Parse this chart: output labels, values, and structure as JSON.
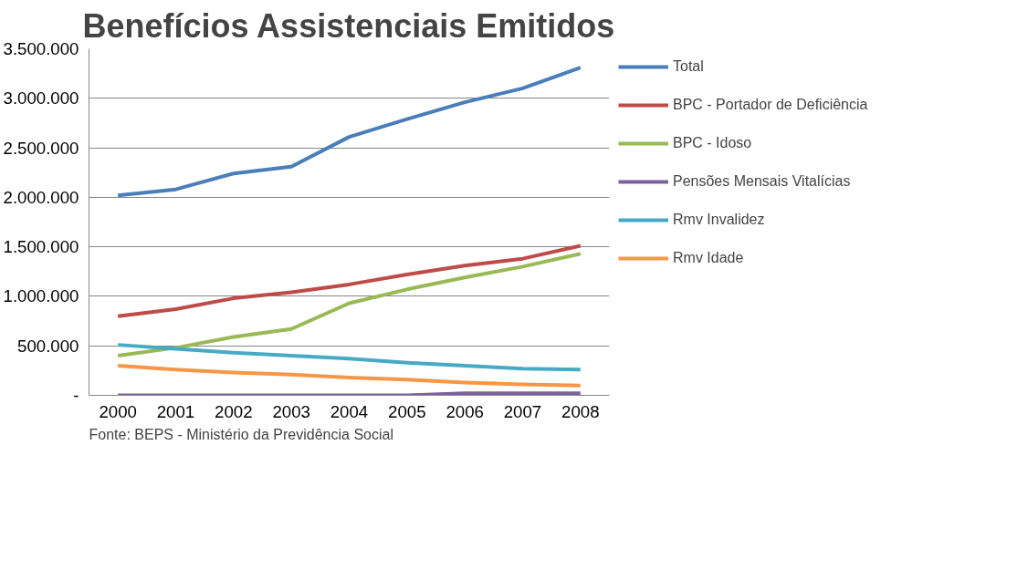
{
  "chart_data": {
    "type": "line",
    "title": "Benefícios Assistenciais Emitidos",
    "categories": [
      "2000",
      "2001",
      "2002",
      "2003",
      "2004",
      "2005",
      "2006",
      "2007",
      "2008"
    ],
    "series": [
      {
        "name": "Total",
        "color": "#4a7ebb",
        "values": [
          2020000,
          2080000,
          2240000,
          2310000,
          2610000,
          2790000,
          2960000,
          3100000,
          3310000
        ]
      },
      {
        "name": "BPC - Portador de Deficiência",
        "color": "#be4b48",
        "values": [
          800000,
          870000,
          980000,
          1040000,
          1120000,
          1220000,
          1310000,
          1380000,
          1510000
        ]
      },
      {
        "name": "BPC - Idoso",
        "color": "#98b954",
        "values": [
          400000,
          480000,
          590000,
          670000,
          930000,
          1070000,
          1190000,
          1300000,
          1430000
        ]
      },
      {
        "name": "Pensões Mensais Vitalícias",
        "color": "#7d60a0",
        "values": [
          0,
          0,
          0,
          0,
          0,
          0,
          20000,
          20000,
          20000
        ]
      },
      {
        "name": "Rmv Invalidez",
        "color": "#46aac5",
        "values": [
          510000,
          470000,
          430000,
          400000,
          370000,
          330000,
          300000,
          270000,
          260000
        ]
      },
      {
        "name": "Rmv Idade",
        "color": "#f79646",
        "values": [
          300000,
          260000,
          230000,
          210000,
          180000,
          160000,
          130000,
          110000,
          100000
        ]
      }
    ],
    "ylim": [
      0,
      3500000
    ],
    "yticks": [
      {
        "value": 0,
        "label": "-"
      },
      {
        "value": 500000,
        "label": "500.000"
      },
      {
        "value": 1000000,
        "label": "1.000.000"
      },
      {
        "value": 1500000,
        "label": "1.500.000"
      },
      {
        "value": 2000000,
        "label": "2.000.000"
      },
      {
        "value": 2500000,
        "label": "2.500.000"
      },
      {
        "value": 3000000,
        "label": "3.000.000"
      },
      {
        "value": 3500000,
        "label": "3.500.000"
      }
    ],
    "grid": "y",
    "legend": "right",
    "marker": "none",
    "line_style": "solid",
    "annotations": [
      "Fonte: BEPS - Ministério da Previdência Social"
    ]
  }
}
